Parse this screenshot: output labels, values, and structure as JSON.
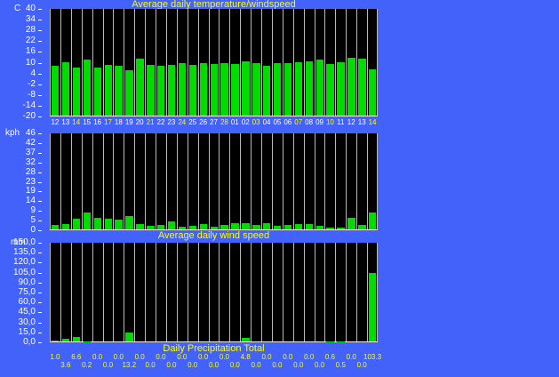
{
  "colors": {
    "background": "#4262fa",
    "plot_background": "#000000",
    "bar_green": "#00dc00",
    "grid_line": "#b9b9b9",
    "axis_line": "#ececec",
    "label_white": "#ffffff",
    "label_yellow": "#ffff00"
  },
  "chart_data": [
    {
      "type": "bar",
      "title": "Average daily temperature/windspeed",
      "title_position": "above",
      "unit": "C",
      "ylim": [
        -20,
        40
      ],
      "yticks": [
        "40",
        "34",
        "28",
        "22",
        "16",
        "10",
        "4",
        "-2",
        "-8",
        "-14",
        "-20"
      ],
      "categories": [
        "12",
        "13",
        "14",
        "15",
        "16",
        "17",
        "18",
        "19",
        "20",
        "21",
        "22",
        "23",
        "24",
        "25",
        "26",
        "27",
        "28",
        "01",
        "02",
        "03",
        "04",
        "05",
        "06",
        "07",
        "08",
        "09",
        "10",
        "11",
        "12",
        "13",
        "14"
      ],
      "highlighted_label_indices": [
        2,
        5,
        9,
        12,
        16,
        19,
        23,
        26,
        30
      ],
      "values": [
        8,
        10,
        7,
        11,
        7,
        8.5,
        8,
        5.5,
        11.5,
        8.5,
        8,
        8.5,
        9.5,
        8.5,
        9.5,
        9,
        9.5,
        9,
        10.5,
        9.5,
        8,
        9.5,
        9.5,
        10,
        10.5,
        11,
        9,
        10,
        12,
        11.5,
        6
      ],
      "grid": "vertical",
      "legend": "none"
    },
    {
      "type": "bar",
      "title": "Average daily wind speed",
      "title_position": "below",
      "unit": "kph",
      "ylim": [
        0,
        46
      ],
      "yticks": [
        "46",
        "42",
        "37",
        "32",
        "28",
        "23",
        "19",
        "14",
        "9",
        "5",
        "0"
      ],
      "categories": [
        "12",
        "13",
        "14",
        "15",
        "16",
        "17",
        "18",
        "19",
        "20",
        "21",
        "22",
        "23",
        "24",
        "25",
        "26",
        "27",
        "28",
        "01",
        "02",
        "03",
        "04",
        "05",
        "06",
        "07",
        "08",
        "09",
        "10",
        "11",
        "12",
        "13",
        "14"
      ],
      "values": [
        2,
        2.5,
        5,
        8,
        5.5,
        5,
        4.5,
        6.5,
        2.7,
        1.6,
        2,
        3.8,
        1.3,
        1.6,
        2.7,
        1.3,
        2,
        3,
        3,
        2,
        3,
        1.6,
        2,
        2.4,
        2.7,
        1.6,
        1,
        0.9,
        5.5,
        2,
        8
      ],
      "grid": "vertical",
      "legend": "none"
    },
    {
      "type": "bar",
      "title": "Daily Precipitation Total",
      "title_position": "below",
      "unit": "mm",
      "ylim": [
        0,
        150
      ],
      "yticks": [
        "150,0",
        "135,0",
        "120,0",
        "105,0",
        "90,0",
        "75,0",
        "60,0",
        "45,0",
        "30,0",
        "15,0",
        "0,0"
      ],
      "categories": [
        "12",
        "13",
        "14",
        "15",
        "16",
        "17",
        "18",
        "19",
        "20",
        "21",
        "22",
        "23",
        "24",
        "25",
        "26",
        "27",
        "28",
        "01",
        "02",
        "03",
        "04",
        "05",
        "06",
        "07",
        "08",
        "09",
        "10",
        "11",
        "12",
        "13",
        "14"
      ],
      "values": [
        1.0,
        3.6,
        6.6,
        0.2,
        0.0,
        0.0,
        0.0,
        13.2,
        0.0,
        0.0,
        0.0,
        0.0,
        0.0,
        0.0,
        0.0,
        0.0,
        0.0,
        0.0,
        4.8,
        0.0,
        0.0,
        0.0,
        0.0,
        0.0,
        0.0,
        0.0,
        0.6,
        0.5,
        0.0,
        0.0,
        103.3
      ],
      "value_labels": [
        "1.0",
        "3.6",
        "6.6",
        "0.2",
        "0.0",
        "0.0",
        "0.0",
        "13.2",
        "0.0",
        "0.0",
        "0.0",
        "0.0",
        "0.0",
        "0.0",
        "0.0",
        "0.0",
        "0.0",
        "0.0",
        "4.8",
        "0.0",
        "0.0",
        "0.0",
        "0.0",
        "0.0",
        "0.0",
        "0.0",
        "0.6",
        "0.5",
        "0.0",
        "0.0",
        "103.3"
      ],
      "grid": "vertical",
      "legend": "none"
    }
  ]
}
